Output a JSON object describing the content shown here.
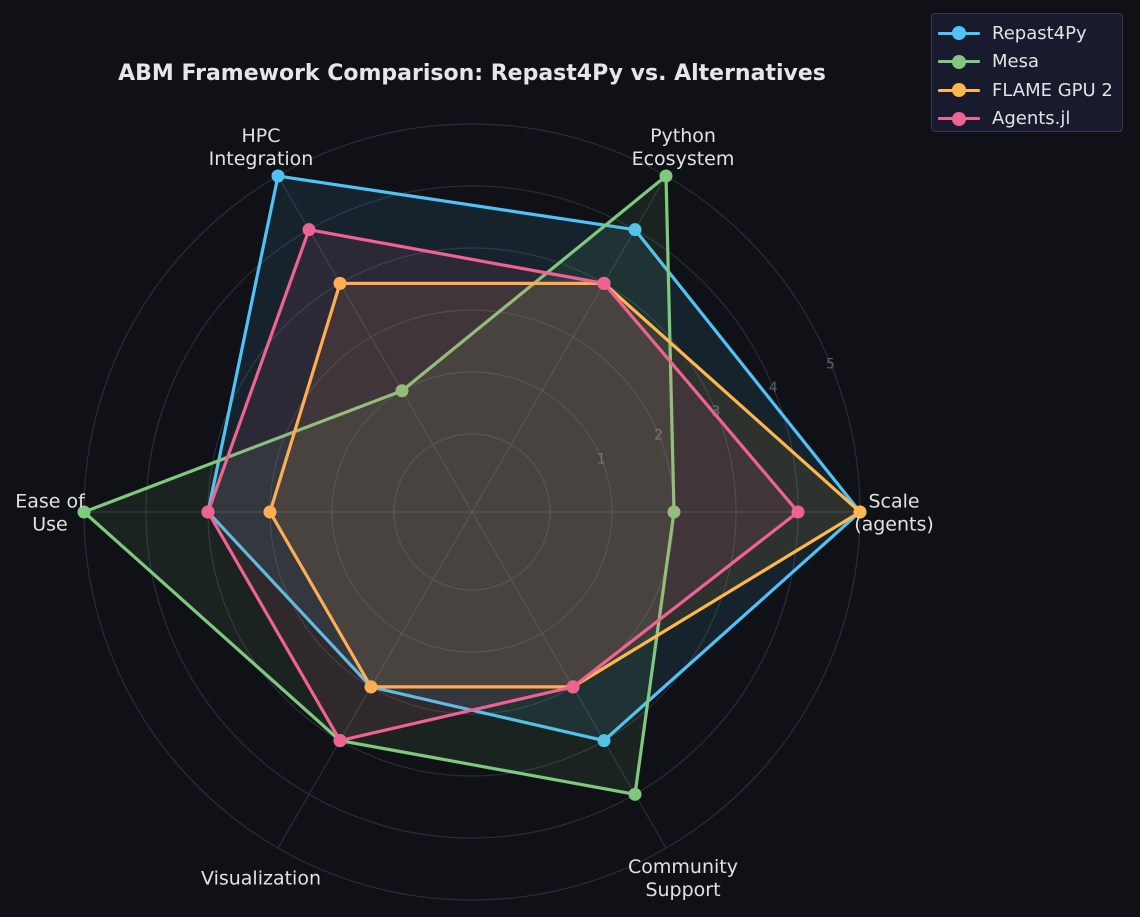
{
  "chart_data": {
    "type": "radar",
    "title": "ABM Framework Comparison: Repast4Py vs. Alternatives",
    "axes": [
      "Scale\n(agents)",
      "Python\nEcosystem",
      "HPC\nIntegration",
      "Ease of\nUse",
      "Visualization",
      "Community\nSupport"
    ],
    "rticks": [
      "1",
      "2",
      "3",
      "4",
      "5"
    ],
    "rmax": 5,
    "grid": true,
    "legend_position": "top-right",
    "series": [
      {
        "name": "Repast4Py",
        "color": "#4fc3f7",
        "values": [
          5,
          4,
          5,
          3,
          2,
          3
        ]
      },
      {
        "name": "Mesa",
        "color": "#7fc97f",
        "values": [
          2,
          5,
          1,
          5,
          3,
          4
        ]
      },
      {
        "name": "FLAME GPU 2",
        "color": "#ffb74d",
        "values": [
          5,
          3,
          3,
          2,
          2,
          2
        ]
      },
      {
        "name": "Agents.jl",
        "color": "#f06292",
        "values": [
          4,
          3,
          4,
          3,
          3,
          2
        ]
      }
    ]
  }
}
